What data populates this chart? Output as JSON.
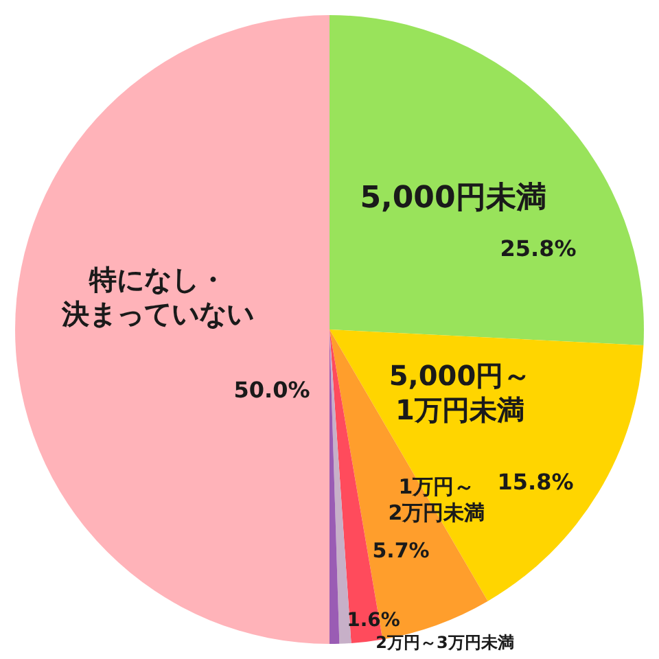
{
  "chart_data": {
    "type": "pie",
    "categories": [
      "5,000円未満",
      "5,000円～1万円未満",
      "1万円～2万円未満",
      "2万円～3万円未満",
      null,
      null,
      "特になし・決まっていない"
    ],
    "values": [
      25.8,
      15.8,
      5.7,
      1.6,
      0.6,
      0.5,
      50.0
    ],
    "value_labels": [
      "25.8%",
      "15.8%",
      "5.7%",
      "1.6%",
      null,
      null,
      "50.0%"
    ],
    "colors": [
      "#99e35b",
      "#ffd500",
      "#ff9e2c",
      "#ff4b5c",
      "#c7b0c8",
      "#9a5cb4",
      "#ffb3b9"
    ]
  }
}
